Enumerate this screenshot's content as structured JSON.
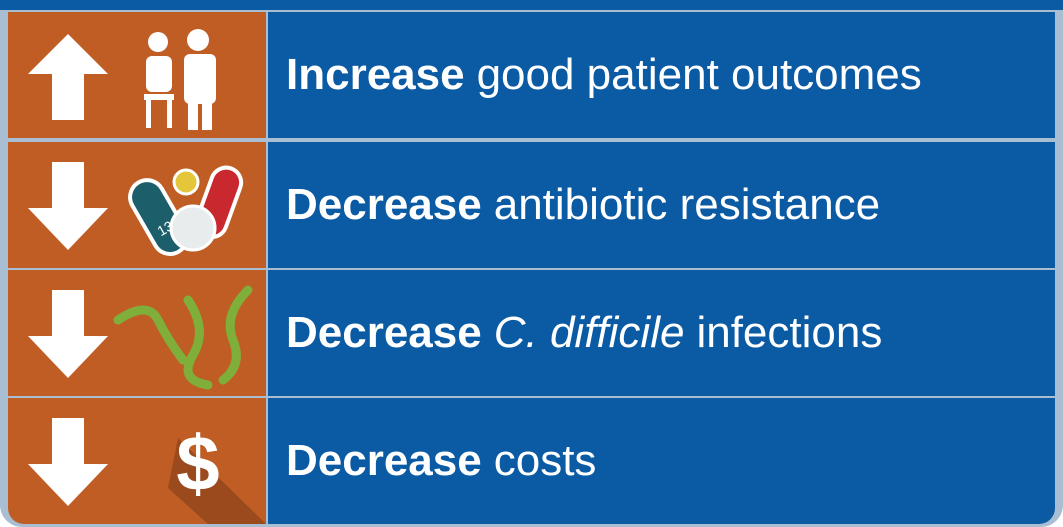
{
  "rows": [
    {
      "lead": "Increase",
      "tail": "good patient outcomes"
    },
    {
      "lead": "Decrease",
      "tail": "antibiotic resistance",
      "pill_label": "13"
    },
    {
      "lead": "Decrease",
      "emphasis": "C. difficile",
      "tail": "infections"
    },
    {
      "lead": "Decrease",
      "tail": "costs",
      "icon_text": "$"
    }
  ]
}
